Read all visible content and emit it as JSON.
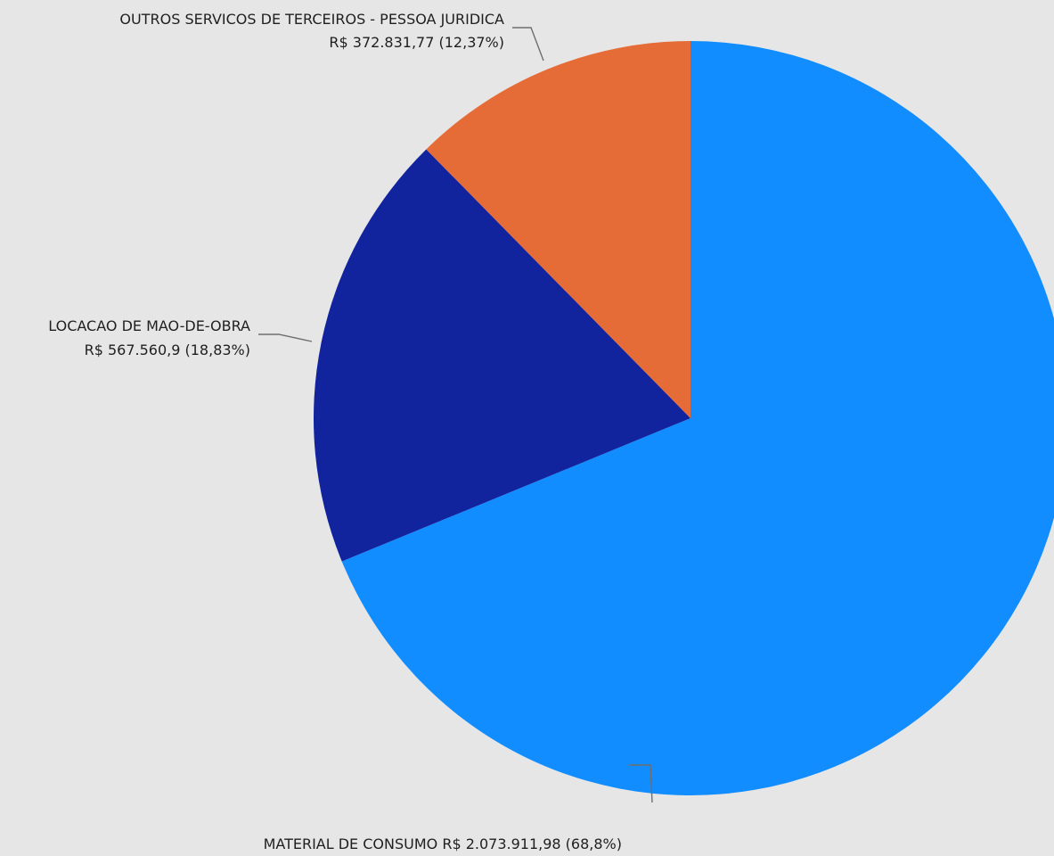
{
  "chart_data": {
    "type": "pie",
    "start_angle_deg": 0,
    "direction": "clockwise",
    "slices": [
      {
        "label": "MATERIAL DE CONSUMO",
        "value": 2073911.98,
        "value_text": "R$ 2.073.911,98",
        "percent_text": "68,8%",
        "color": "#118dff"
      },
      {
        "label": "LOCACAO DE MAO-DE-OBRA",
        "value": 567560.9,
        "value_text": "R$ 567.560,9",
        "percent_text": "18,83%",
        "color": "#12239e"
      },
      {
        "label": "OUTROS SERVICOS DE TERCEIROS - PESSOA JURIDICA",
        "value": 372831.77,
        "value_text": "R$ 372.831,77",
        "percent_text": "12,37%",
        "color": "#e66c37"
      }
    ]
  }
}
